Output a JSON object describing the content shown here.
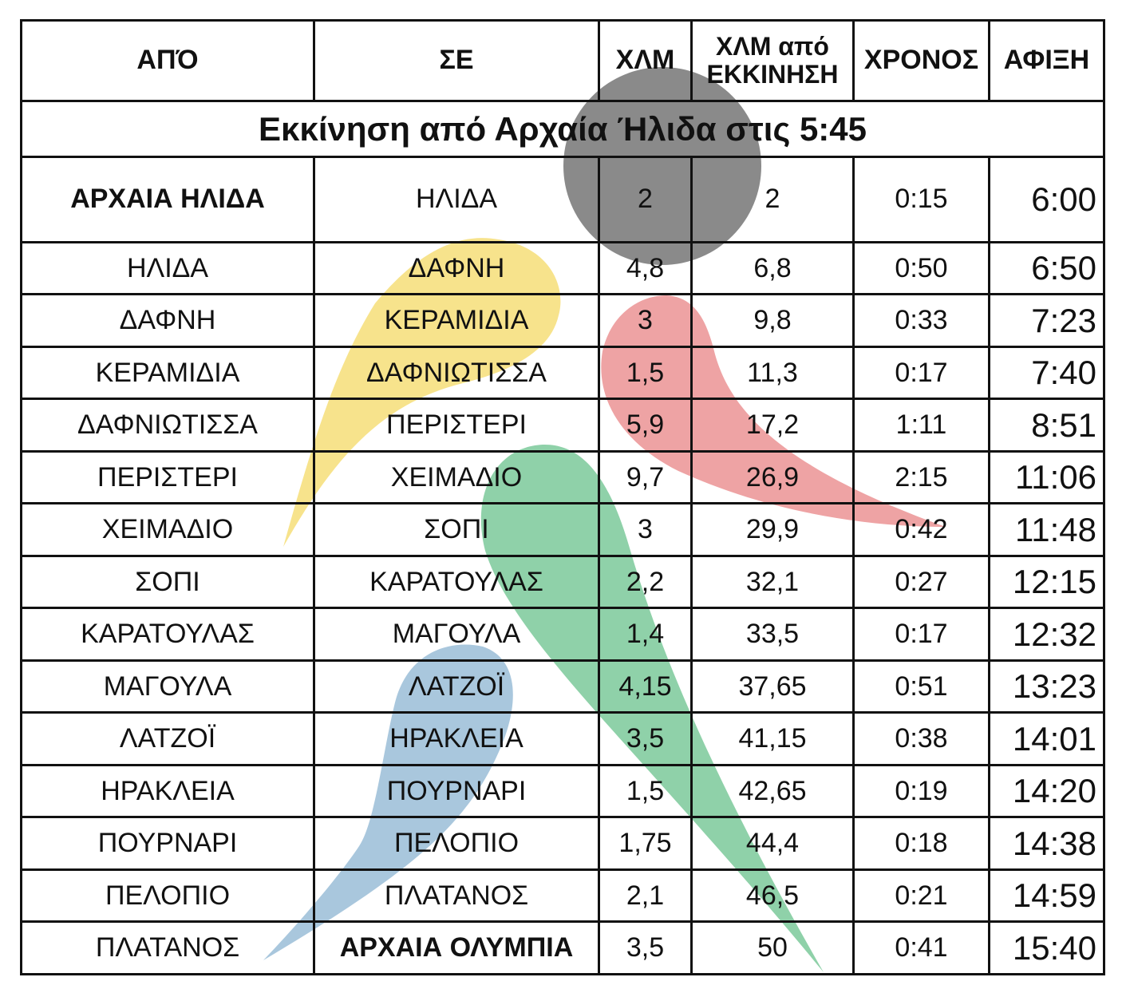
{
  "headers": {
    "from": "ΑΠΌ",
    "to": "ΣΕ",
    "km": "ΧΛΜ",
    "km_from_start": "ΧΛΜ από ΕΚΚΙΝΗΣΗ",
    "time": "ΧΡΟΝΟΣ",
    "arrival": "ΑΦΙΞΗ"
  },
  "title": "Εκκίνηση από Αρχαία Ήλιδα στις 5:45",
  "rows": [
    {
      "from": "ΑΡΧΑΙΑ ΗΛΙΔΑ",
      "to": "ΗΛΙΔΑ",
      "km": "2",
      "cum": "2",
      "time": "0:15",
      "arrival": "6:00"
    },
    {
      "from": "ΗΛΙΔΑ",
      "to": "ΔΑΦΝΗ",
      "km": "4,8",
      "cum": "6,8",
      "time": "0:50",
      "arrival": "6:50"
    },
    {
      "from": "ΔΑΦΝΗ",
      "to": "ΚΕΡΑΜΙΔΙΑ",
      "km": "3",
      "cum": "9,8",
      "time": "0:33",
      "arrival": "7:23"
    },
    {
      "from": "ΚΕΡΑΜΙΔΙΑ",
      "to": "ΔΑΦΝΙΩΤΙΣΣΑ",
      "km": "1,5",
      "cum": "11,3",
      "time": "0:17",
      "arrival": "7:40"
    },
    {
      "from": "ΔΑΦΝΙΩΤΙΣΣΑ",
      "to": "ΠΕΡΙΣΤΕΡΙ",
      "km": "5,9",
      "cum": "17,2",
      "time": "1:11",
      "arrival": "8:51"
    },
    {
      "from": "ΠΕΡΙΣΤΕΡΙ",
      "to": "ΧΕΙΜΑΔΙΟ",
      "km": "9,7",
      "cum": "26,9",
      "time": "2:15",
      "arrival": "11:06"
    },
    {
      "from": "ΧΕΙΜΑΔΙΟ",
      "to": "ΣΟΠΙ",
      "km": "3",
      "cum": "29,9",
      "time": "0:42",
      "arrival": "11:48"
    },
    {
      "from": "ΣΟΠΙ",
      "to": "ΚΑΡΑΤΟΥΛΑΣ",
      "km": "2,2",
      "cum": "32,1",
      "time": "0:27",
      "arrival": "12:15"
    },
    {
      "from": "ΚΑΡΑΤΟΥΛΑΣ",
      "to": "ΜΑΓΟΥΛΑ",
      "km": "1,4",
      "cum": "33,5",
      "time": "0:17",
      "arrival": "12:32"
    },
    {
      "from": "ΜΑΓΟΥΛΑ",
      "to": "ΛΑΤΖΟΪ",
      "km": "4,15",
      "cum": "37,65",
      "time": "0:51",
      "arrival": "13:23"
    },
    {
      "from": "ΛΑΤΖΟΪ",
      "to": "ΗΡΑΚΛΕΙΑ",
      "km": "3,5",
      "cum": "41,15",
      "time": "0:38",
      "arrival": "14:01"
    },
    {
      "from": "ΗΡΑΚΛΕΙΑ",
      "to": "ΠΟΥΡΝΑΡΙ",
      "km": "1,5",
      "cum": "42,65",
      "time": "0:19",
      "arrival": "14:20"
    },
    {
      "from": "ΠΟΥΡΝΑΡΙ",
      "to": "ΠΕΛΟΠΙΟ",
      "km": "1,75",
      "cum": "44,4",
      "time": "0:18",
      "arrival": "14:38"
    },
    {
      "from": "ΠΕΛΟΠΙΟ",
      "to": "ΠΛΑΤΑΝΟΣ",
      "km": "2,1",
      "cum": "46,5",
      "time": "0:21",
      "arrival": "14:59"
    },
    {
      "from": "ΠΛΑΤΑΝΟΣ",
      "to": "ΑΡΧΑΙΑ ΟΛΥΜΠΙΑ",
      "km": "3,5",
      "cum": "50",
      "time": "0:41",
      "arrival": "15:40"
    }
  ],
  "decor_colors": {
    "grey": "#8a8a8a",
    "yellow": "#f7e38c",
    "red": "#eea3a4",
    "green": "#8fd1a9",
    "blue": "#a9c7dd"
  }
}
